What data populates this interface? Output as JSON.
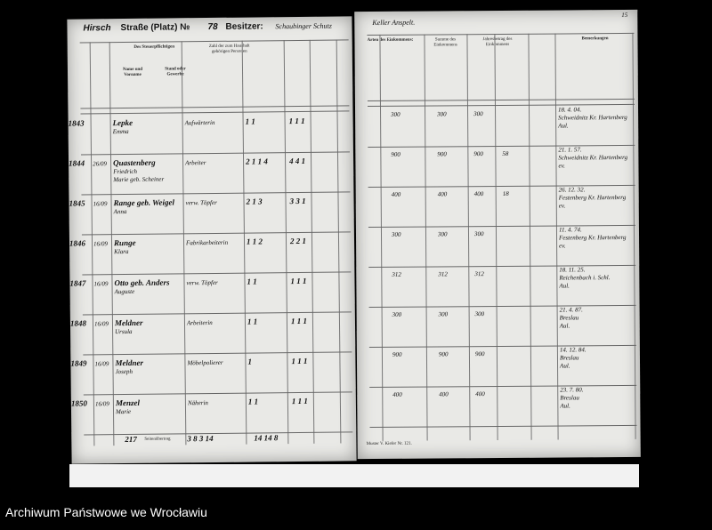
{
  "header": {
    "street_label": "Straße (Platz) №",
    "street_value": "Hirsch",
    "house_number": "78",
    "owner_label": "Besitzer:",
    "owner_value": "Schaubinger Schutz",
    "owner_value_cont": "Keller Anspelt.",
    "page_mark": "15"
  },
  "columns_left": {
    "taxpayer": "Des Steuerpflichtigen",
    "name": "Name und Vorname",
    "occupation": "Stand oder Gewerbe",
    "household": "Zahl der zum Haushalt gehörigen Personen"
  },
  "columns_right": {
    "income_types": "Arten des Einkommens:",
    "total": "Summe des Einkommens",
    "annual": "Jahresbetrag des Einkommens",
    "remarks": "Bemerkungen"
  },
  "rows": [
    {
      "no": "1843",
      "sub": "",
      "name": "Lepke",
      "first": "Emma",
      "occ": "Aufwärterin",
      "counts": "1   1",
      "h": "1 1 1",
      "inc": "300",
      "tot": "300",
      "yr": "300",
      "tax": "",
      "rem": "18. 4. 04.",
      "rem2": "Schweidnitz Kr. Hartenberg",
      "rem3": "Aul."
    },
    {
      "no": "1844",
      "sub": "26/09",
      "name": "Quastenberg",
      "first": "Friedrich",
      "extra": "Marie geb. Scheiner",
      "occ": "Arbeiter",
      "counts": "2 1 1 4",
      "h": "4 4 1",
      "inc": "900",
      "tot": "900",
      "yr": "900",
      "tax": "58",
      "rem": "21. 1. 57.",
      "rem2": "Schweidnitz Kr. Hartenberg",
      "rem3": "ev."
    },
    {
      "no": "1845",
      "sub": "16/09",
      "name": "Range geb. Weigel",
      "first": "Anna",
      "occ": "verw. Töpfer",
      "counts": "2 1 3",
      "h": "3 3 1",
      "inc": "400",
      "tot": "400",
      "yr": "400",
      "tax": "18",
      "rem": "26. 12. 32.",
      "rem2": "Festenberg Kr. Hartenberg",
      "rem3": "ev."
    },
    {
      "no": "1846",
      "sub": "16/09",
      "name": "Runge",
      "first": "Klara",
      "occ": "Fabrikarbeiterin",
      "counts": "1 1 2",
      "h": "2 2 1",
      "inc": "300",
      "tot": "300",
      "yr": "300",
      "tax": "",
      "rem": "11. 4. 74.",
      "rem2": "Festenberg Kr. Hartenberg",
      "rem3": "ev."
    },
    {
      "no": "1847",
      "sub": "16/09",
      "name": "Otto geb. Anders",
      "first": "Auguste",
      "occ": "verw. Töpfer",
      "counts": "1   1",
      "h": "1 1 1",
      "inc": "312",
      "tot": "312",
      "yr": "312",
      "tax": "",
      "rem": "18. 11. 25.",
      "rem2": "Reichenbach i. Schl.",
      "rem3": "Aul."
    },
    {
      "no": "1848",
      "sub": "16/09",
      "name": "Meldner",
      "first": "Ursula",
      "occ": "Arbeiterin",
      "counts": "1   1",
      "h": "1 1 1",
      "inc": "300",
      "tot": "300",
      "yr": "300",
      "tax": "",
      "rem": "21. 4. 87.",
      "rem2": "Breslau",
      "rem3": "Aul."
    },
    {
      "no": "1849",
      "sub": "16/09",
      "name": "Meldner",
      "first": "Joseph",
      "occ": "Möbelpolierer",
      "counts": "1",
      "h": "1 1 1",
      "inc": "900",
      "tot": "900",
      "yr": "900",
      "tax": "",
      "rem": "14. 12. 84.",
      "rem2": "Breslau",
      "rem3": "Aul."
    },
    {
      "no": "1850",
      "sub": "16/09",
      "name": "Menzel",
      "first": "Marie",
      "occ": "Näherin",
      "counts": "1   1",
      "h": "1 1 1",
      "inc": "400",
      "tot": "400",
      "yr": "400",
      "tax": "",
      "rem": "23. 7. 80.",
      "rem2": "Breslau",
      "rem3": "Aul."
    }
  ],
  "footer": {
    "total_no": "217",
    "total_label": "Seitenübertrag",
    "counts": "3 8 3 14",
    "h": "14 14 8",
    "right_note": "Muster V. Kiefer Nr. 121."
  },
  "caption": "Archiwum Państwowe we Wrocławiu"
}
